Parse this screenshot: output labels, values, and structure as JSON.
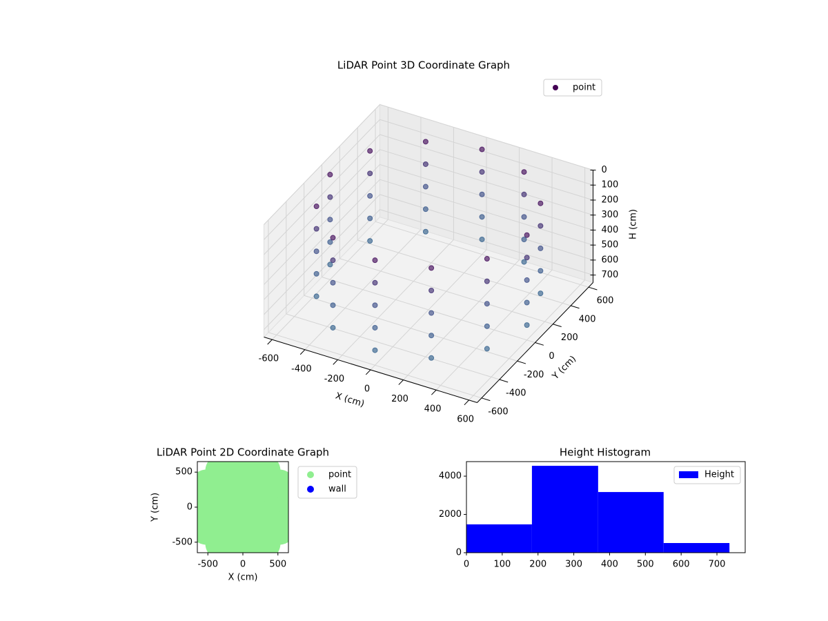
{
  "chart_data": [
    {
      "type": "scatter3d",
      "title": "LiDAR Point 3D Coordinate Graph",
      "xlabel": "X (cm)",
      "ylabel": "Y (cm)",
      "zlabel": "H (cm)",
      "xlim": [
        -650,
        650
      ],
      "ylim": [
        -650,
        650
      ],
      "zlim": [
        750,
        0
      ],
      "xticks": [
        -600,
        -400,
        -200,
        0,
        200,
        400,
        600
      ],
      "yticks": [
        -600,
        -400,
        -200,
        0,
        200,
        400,
        600
      ],
      "zticks": [
        0,
        100,
        200,
        300,
        400,
        500,
        600,
        700
      ],
      "grid": true,
      "legend": "upper right",
      "color_map": [
        "#440154",
        "#3b528b",
        "#31688e"
      ],
      "series": [
        {
          "name": "point",
          "color": "#440154",
          "x": [
            600,
            520,
            300,
            0,
            -300,
            -520,
            -600,
            -520,
            -300,
            0,
            300,
            520,
            600,
            520,
            300,
            0,
            -300,
            -520,
            -600,
            -520,
            -300,
            0,
            300,
            520,
            600,
            520,
            300,
            0,
            -300,
            -520,
            -600,
            -520,
            -300,
            0,
            300,
            520,
            600,
            520,
            300,
            0,
            -300,
            -520,
            -600,
            -520,
            -300,
            0,
            300,
            520,
            600,
            520,
            300,
            0,
            -300,
            -520,
            -600,
            -520,
            -300,
            0,
            300,
            520
          ],
          "y": [
            0,
            300,
            520,
            600,
            520,
            300,
            0,
            -300,
            -520,
            -600,
            -520,
            -300,
            0,
            300,
            520,
            600,
            520,
            300,
            0,
            -300,
            -520,
            -600,
            -520,
            -300,
            0,
            300,
            520,
            600,
            520,
            300,
            0,
            -300,
            -520,
            -600,
            -520,
            -300,
            0,
            300,
            520,
            600,
            520,
            300,
            0,
            -300,
            -520,
            -600,
            -520,
            -300,
            0,
            300,
            520,
            600,
            520,
            300,
            0,
            -300,
            -520,
            -600,
            -520,
            -300
          ],
          "z": [
            50,
            50,
            50,
            50,
            50,
            50,
            50,
            50,
            50,
            50,
            50,
            50,
            200,
            200,
            200,
            200,
            200,
            200,
            200,
            200,
            200,
            200,
            200,
            200,
            350,
            350,
            350,
            350,
            350,
            350,
            350,
            350,
            350,
            350,
            350,
            350,
            500,
            500,
            500,
            500,
            500,
            500,
            500,
            500,
            500,
            500,
            500,
            500,
            650,
            650,
            650,
            650,
            650,
            650,
            650,
            650,
            650,
            650,
            650,
            650
          ]
        }
      ]
    },
    {
      "type": "scatter",
      "title": "LiDAR Point 2D Coordinate Graph",
      "xlabel": "X (cm)",
      "ylabel": "Y (cm)",
      "xlim": [
        -650,
        650
      ],
      "ylim": [
        -650,
        650
      ],
      "xticks": [
        -500,
        0,
        500
      ],
      "yticks": [
        -500,
        0,
        500
      ],
      "legend": "outside right",
      "series": [
        {
          "name": "point",
          "color": "#90ee90",
          "x": [
            600,
            520,
            300,
            0,
            -300,
            -520,
            -600,
            -520,
            -300,
            0,
            300,
            520,
            300,
            150,
            -150,
            -300,
            -150,
            150,
            0
          ],
          "y": [
            0,
            300,
            520,
            600,
            520,
            300,
            0,
            -300,
            -520,
            -600,
            -520,
            -300,
            0,
            260,
            260,
            0,
            -260,
            -260,
            0
          ]
        },
        {
          "name": "wall",
          "color": "#0000ff",
          "x": [],
          "y": []
        }
      ]
    },
    {
      "type": "histogram",
      "title": "Height Histogram",
      "bins": [
        0,
        183,
        368,
        551,
        735
      ],
      "xlim": [
        0,
        779
      ],
      "ylim": [
        0,
        4760
      ],
      "xticks": [
        0,
        100,
        200,
        300,
        400,
        500,
        600,
        700
      ],
      "yticks": [
        0,
        2000,
        4000
      ],
      "legend": "upper right",
      "series": [
        {
          "name": "Height",
          "color": "#0000ff",
          "values": [
            1480,
            4540,
            3170,
            505
          ]
        }
      ]
    }
  ]
}
